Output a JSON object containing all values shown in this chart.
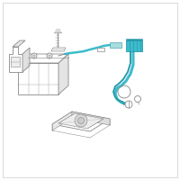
{
  "bg_color": "#ffffff",
  "border_color": "#cccccc",
  "line_color": "#888888",
  "lc_dark": "#555555",
  "highlight_color": "#3bbccc",
  "highlight_dark": "#2a9aaa",
  "fig_size": [
    2.0,
    2.0
  ],
  "dpi": 100
}
